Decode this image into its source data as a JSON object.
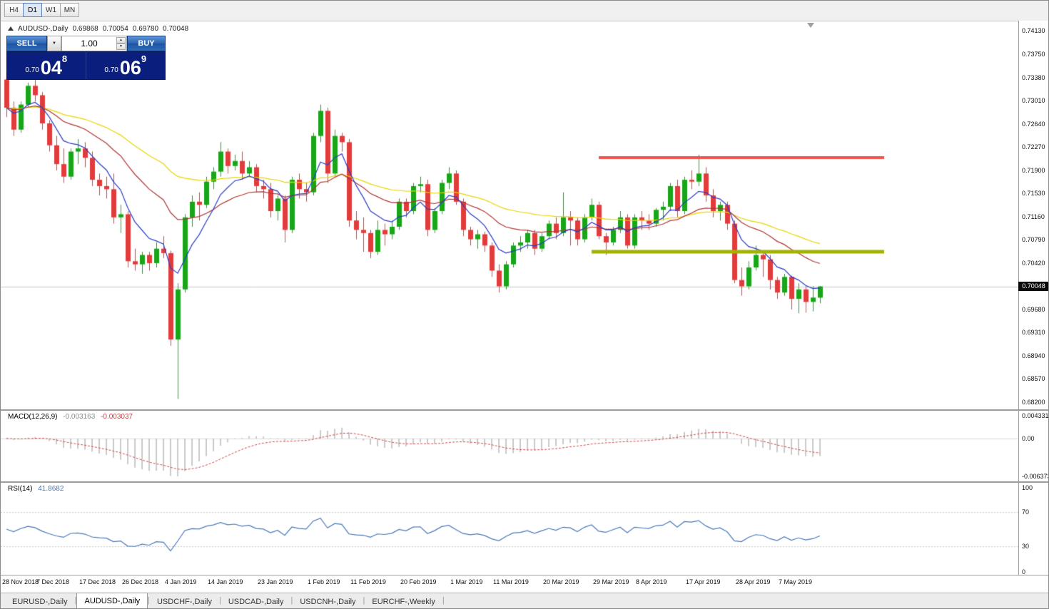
{
  "toolbar": {
    "timeframes": [
      {
        "label": "H4",
        "active": false
      },
      {
        "label": "D1",
        "active": true
      },
      {
        "label": "W1",
        "active": false
      },
      {
        "label": "MN",
        "active": false
      }
    ]
  },
  "chart": {
    "symbol": "AUDUSD-,Daily",
    "ohlc": {
      "open": "0.69868",
      "high": "0.70054",
      "low": "0.69780",
      "close": "0.70048"
    },
    "current_price": "0.70048",
    "price_axis_labels": [
      "0.74130",
      "0.73750",
      "0.73380",
      "0.73010",
      "0.72640",
      "0.72270",
      "0.71900",
      "0.71530",
      "0.71160",
      "0.70790",
      "0.70420",
      "0.69680",
      "0.69310",
      "0.68940",
      "0.68570",
      "0.68200"
    ]
  },
  "trade_panel": {
    "sell_label": "SELL",
    "buy_label": "BUY",
    "volume": "1.00",
    "sell_price": {
      "prefix": "0.70",
      "big": "04",
      "sup": "8"
    },
    "buy_price": {
      "prefix": "0.70",
      "big": "06",
      "sup": "9"
    }
  },
  "macd": {
    "name": "MACD(12,26,9)",
    "value_main": "-0.003163",
    "value_signal": "-0.003037",
    "axis_top": "0.004331",
    "axis_zero": "0.00",
    "axis_bottom": "-0.006373"
  },
  "rsi": {
    "name": "RSI(14)",
    "value": "41.8682",
    "axis_labels": [
      "100",
      "70",
      "30",
      "0"
    ],
    "levels": [
      70,
      30
    ]
  },
  "date_axis": [
    {
      "label": "28 Nov 2018",
      "i": 0
    },
    {
      "label": "7 Dec 2018",
      "i": 7
    },
    {
      "label": "17 Dec 2018",
      "i": 13
    },
    {
      "label": "26 Dec 2018",
      "i": 19
    },
    {
      "label": "4 Jan 2019",
      "i": 25
    },
    {
      "label": "14 Jan 2019",
      "i": 31
    },
    {
      "label": "23 Jan 2019",
      "i": 38
    },
    {
      "label": "1 Feb 2019",
      "i": 45
    },
    {
      "label": "11 Feb 2019",
      "i": 51
    },
    {
      "label": "20 Feb 2019",
      "i": 58
    },
    {
      "label": "1 Mar 2019",
      "i": 65
    },
    {
      "label": "11 Mar 2019",
      "i": 71
    },
    {
      "label": "20 Mar 2019",
      "i": 78
    },
    {
      "label": "29 Mar 2019",
      "i": 85
    },
    {
      "label": "8 Apr 2019",
      "i": 91
    },
    {
      "label": "17 Apr 2019",
      "i": 98
    },
    {
      "label": "28 Apr 2019",
      "i": 105
    },
    {
      "label": "7 May 2019",
      "i": 111
    }
  ],
  "bottom_tabs": [
    {
      "label": "EURUSD-,Daily",
      "active": false
    },
    {
      "label": "AUDUSD-,Daily",
      "active": true
    },
    {
      "label": "USDCHF-,Daily",
      "active": false
    },
    {
      "label": "USDCAD-,Daily",
      "active": false
    },
    {
      "label": "USDCNH-,Daily",
      "active": false
    },
    {
      "label": "EURCHF-,Weekly",
      "active": false
    }
  ],
  "chart_data": {
    "type": "candlestick",
    "symbol": "AUDUSD",
    "timeframe": "Daily",
    "price_range": [
      0.682,
      0.7413
    ],
    "candle_colors": {
      "bull": "#17a617",
      "bear": "#e23b3b"
    },
    "candles": [
      [
        0.7335,
        0.7345,
        0.7275,
        0.729
      ],
      [
        0.729,
        0.73,
        0.7245,
        0.7255
      ],
      [
        0.7255,
        0.73,
        0.725,
        0.7295
      ],
      [
        0.7295,
        0.733,
        0.729,
        0.7325
      ],
      [
        0.7325,
        0.734,
        0.73,
        0.731
      ],
      [
        0.731,
        0.7315,
        0.7255,
        0.7265
      ],
      [
        0.7265,
        0.727,
        0.722,
        0.723
      ],
      [
        0.723,
        0.7245,
        0.719,
        0.72
      ],
      [
        0.72,
        0.7225,
        0.717,
        0.718
      ],
      [
        0.718,
        0.7225,
        0.7175,
        0.722
      ],
      [
        0.722,
        0.724,
        0.72,
        0.7225
      ],
      [
        0.7225,
        0.7235,
        0.7195,
        0.721
      ],
      [
        0.721,
        0.722,
        0.7165,
        0.7175
      ],
      [
        0.7175,
        0.7185,
        0.715,
        0.7165
      ],
      [
        0.7165,
        0.718,
        0.7145,
        0.716
      ],
      [
        0.716,
        0.7185,
        0.7105,
        0.7115
      ],
      [
        0.7115,
        0.7135,
        0.709,
        0.712
      ],
      [
        0.712,
        0.7125,
        0.7035,
        0.7045
      ],
      [
        0.7045,
        0.7065,
        0.703,
        0.704
      ],
      [
        0.704,
        0.706,
        0.7025,
        0.7055
      ],
      [
        0.7055,
        0.706,
        0.703,
        0.7042
      ],
      [
        0.7042,
        0.7075,
        0.7035,
        0.7065
      ],
      [
        0.7065,
        0.7085,
        0.705,
        0.7058
      ],
      [
        0.7058,
        0.7062,
        0.691,
        0.692
      ],
      [
        0.692,
        0.701,
        0.6825,
        0.7
      ],
      [
        0.7,
        0.712,
        0.6995,
        0.7115
      ],
      [
        0.7115,
        0.715,
        0.71,
        0.714
      ],
      [
        0.714,
        0.7155,
        0.711,
        0.7135
      ],
      [
        0.7135,
        0.718,
        0.713,
        0.7172
      ],
      [
        0.7172,
        0.7195,
        0.716,
        0.7188
      ],
      [
        0.7188,
        0.7235,
        0.718,
        0.722
      ],
      [
        0.722,
        0.7225,
        0.7185,
        0.7197
      ],
      [
        0.7197,
        0.7215,
        0.719,
        0.7205
      ],
      [
        0.7205,
        0.722,
        0.7175,
        0.7185
      ],
      [
        0.7185,
        0.7205,
        0.718,
        0.7195
      ],
      [
        0.7195,
        0.72,
        0.7155,
        0.7165
      ],
      [
        0.7165,
        0.7175,
        0.7145,
        0.716
      ],
      [
        0.716,
        0.717,
        0.7115,
        0.7125
      ],
      [
        0.7125,
        0.715,
        0.711,
        0.7145
      ],
      [
        0.7145,
        0.715,
        0.7075,
        0.7095
      ],
      [
        0.7095,
        0.718,
        0.709,
        0.7175
      ],
      [
        0.7175,
        0.7185,
        0.7145,
        0.716
      ],
      [
        0.716,
        0.717,
        0.714,
        0.7155
      ],
      [
        0.7155,
        0.725,
        0.715,
        0.7245
      ],
      [
        0.7245,
        0.7295,
        0.7235,
        0.7285
      ],
      [
        0.7285,
        0.729,
        0.717,
        0.7185
      ],
      [
        0.7185,
        0.7255,
        0.718,
        0.7245
      ],
      [
        0.7245,
        0.725,
        0.722,
        0.7235
      ],
      [
        0.7235,
        0.724,
        0.71,
        0.711
      ],
      [
        0.711,
        0.7125,
        0.708,
        0.7095
      ],
      [
        0.7095,
        0.7115,
        0.706,
        0.709
      ],
      [
        0.709,
        0.7095,
        0.705,
        0.706
      ],
      [
        0.706,
        0.711,
        0.7055,
        0.7095
      ],
      [
        0.7095,
        0.7105,
        0.707,
        0.7088
      ],
      [
        0.7088,
        0.711,
        0.708,
        0.71
      ],
      [
        0.71,
        0.7145,
        0.7095,
        0.714
      ],
      [
        0.714,
        0.7145,
        0.7115,
        0.7125
      ],
      [
        0.7125,
        0.717,
        0.712,
        0.7165
      ],
      [
        0.7165,
        0.718,
        0.7155,
        0.7168
      ],
      [
        0.7168,
        0.7175,
        0.7085,
        0.7095
      ],
      [
        0.7095,
        0.713,
        0.709,
        0.7125
      ],
      [
        0.7125,
        0.7175,
        0.712,
        0.717
      ],
      [
        0.717,
        0.7195,
        0.716,
        0.7185
      ],
      [
        0.7185,
        0.719,
        0.7135,
        0.714
      ],
      [
        0.714,
        0.7145,
        0.7085,
        0.7095
      ],
      [
        0.7095,
        0.71,
        0.707,
        0.708
      ],
      [
        0.708,
        0.7095,
        0.7065,
        0.7088
      ],
      [
        0.7088,
        0.7092,
        0.706,
        0.707
      ],
      [
        0.707,
        0.7075,
        0.702,
        0.703
      ],
      [
        0.703,
        0.704,
        0.6995,
        0.7005
      ],
      [
        0.7005,
        0.7045,
        0.7,
        0.704
      ],
      [
        0.704,
        0.7075,
        0.7035,
        0.707
      ],
      [
        0.707,
        0.7085,
        0.706,
        0.7075
      ],
      [
        0.7075,
        0.7095,
        0.7065,
        0.709
      ],
      [
        0.709,
        0.7095,
        0.7055,
        0.7065
      ],
      [
        0.7065,
        0.709,
        0.706,
        0.7085
      ],
      [
        0.7085,
        0.711,
        0.708,
        0.7105
      ],
      [
        0.7105,
        0.7115,
        0.708,
        0.709
      ],
      [
        0.709,
        0.7155,
        0.7085,
        0.7115
      ],
      [
        0.7115,
        0.7125,
        0.707,
        0.711
      ],
      [
        0.711,
        0.7115,
        0.707,
        0.708
      ],
      [
        0.708,
        0.712,
        0.7075,
        0.7115
      ],
      [
        0.7115,
        0.7145,
        0.711,
        0.7135
      ],
      [
        0.7135,
        0.714,
        0.708,
        0.7085
      ],
      [
        0.7085,
        0.709,
        0.7055,
        0.7075
      ],
      [
        0.7075,
        0.71,
        0.707,
        0.7095
      ],
      [
        0.7095,
        0.7125,
        0.709,
        0.7115
      ],
      [
        0.7115,
        0.712,
        0.7065,
        0.707
      ],
      [
        0.707,
        0.712,
        0.7065,
        0.7115
      ],
      [
        0.7115,
        0.7125,
        0.7095,
        0.711
      ],
      [
        0.711,
        0.712,
        0.7095,
        0.7105
      ],
      [
        0.7105,
        0.713,
        0.71,
        0.7127
      ],
      [
        0.7127,
        0.714,
        0.711,
        0.7132
      ],
      [
        0.7132,
        0.717,
        0.7125,
        0.7165
      ],
      [
        0.7165,
        0.7175,
        0.7115,
        0.7125
      ],
      [
        0.7125,
        0.718,
        0.712,
        0.7175
      ],
      [
        0.7175,
        0.719,
        0.716,
        0.7172
      ],
      [
        0.7172,
        0.7215,
        0.7165,
        0.7185
      ],
      [
        0.7185,
        0.7195,
        0.714,
        0.715
      ],
      [
        0.715,
        0.716,
        0.7115,
        0.7125
      ],
      [
        0.7125,
        0.714,
        0.711,
        0.7135
      ],
      [
        0.7135,
        0.714,
        0.7095,
        0.7105
      ],
      [
        0.7105,
        0.711,
        0.701,
        0.7015
      ],
      [
        0.7015,
        0.7035,
        0.699,
        0.7005
      ],
      [
        0.7005,
        0.7045,
        0.7,
        0.7035
      ],
      [
        0.7035,
        0.707,
        0.703,
        0.7055
      ],
      [
        0.7055,
        0.706,
        0.702,
        0.7048
      ],
      [
        0.7048,
        0.7055,
        0.7,
        0.7015
      ],
      [
        0.7015,
        0.702,
        0.6985,
        0.6995
      ],
      [
        0.6995,
        0.7025,
        0.699,
        0.702
      ],
      [
        0.702,
        0.7022,
        0.6968,
        0.6985
      ],
      [
        0.6985,
        0.701,
        0.6962,
        0.7
      ],
      [
        0.7,
        0.7005,
        0.6963,
        0.698
      ],
      [
        0.698,
        0.7005,
        0.6965,
        0.6987
      ],
      [
        0.69868,
        0.70054,
        0.6978,
        0.70048
      ]
    ],
    "overlays": {
      "moving_averages": [
        {
          "name": "fast",
          "period": 7,
          "color": "#2a3cc8"
        },
        {
          "name": "medium",
          "period": 21,
          "color": "#b03434"
        },
        {
          "name": "slow",
          "period": 45,
          "color": "#e8d400"
        }
      ],
      "hlines": [
        {
          "price": 0.721,
          "color": "#ef5350",
          "from_index": 83,
          "to_index": 123,
          "line_width": 4
        },
        {
          "price": 0.706,
          "color": "#a2b400",
          "from_index": 82,
          "to_index": 123,
          "line_width": 5
        }
      ]
    },
    "indicators": [
      {
        "type": "MACD",
        "fast": 12,
        "slow": 26,
        "signal": 9,
        "histogram_color": "#b9b9b9",
        "signal_color": "#d04545",
        "last_values": [
          -0.003163,
          -0.003037
        ]
      },
      {
        "type": "RSI",
        "period": 14,
        "color": "#4878b8",
        "last_value": 41.8682
      }
    ]
  }
}
